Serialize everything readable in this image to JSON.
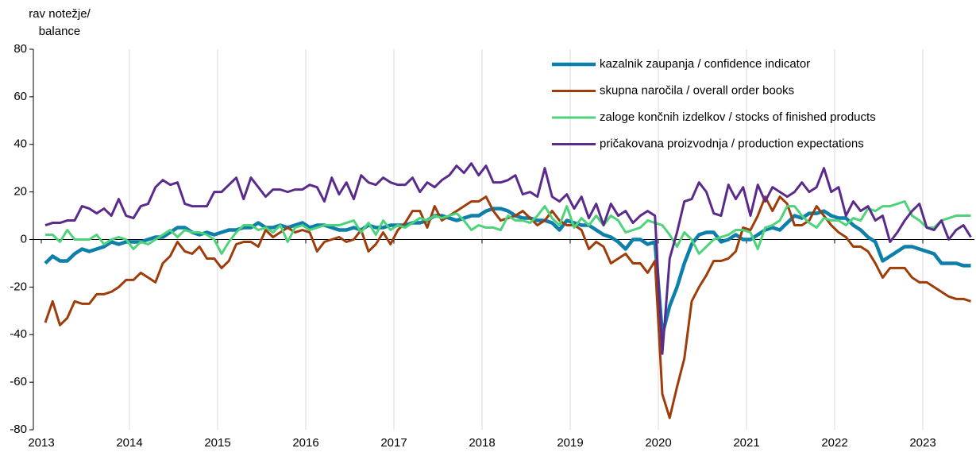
{
  "chart_data": {
    "type": "line",
    "y_label_lines": [
      "rav notežje/",
      "balance"
    ],
    "categories": [
      "2013",
      null,
      null,
      null,
      null,
      null,
      null,
      null,
      null,
      null,
      null,
      null,
      "2014",
      null,
      null,
      null,
      null,
      null,
      null,
      null,
      null,
      null,
      null,
      null,
      "2015",
      null,
      null,
      null,
      null,
      null,
      null,
      null,
      null,
      null,
      null,
      null,
      "2016",
      null,
      null,
      null,
      null,
      null,
      null,
      null,
      null,
      null,
      null,
      null,
      "2017",
      null,
      null,
      null,
      null,
      null,
      null,
      null,
      null,
      null,
      null,
      null,
      "2018",
      null,
      null,
      null,
      null,
      null,
      null,
      null,
      null,
      null,
      null,
      null,
      "2019",
      null,
      null,
      null,
      null,
      null,
      null,
      null,
      null,
      null,
      null,
      null,
      "2020",
      null,
      null,
      null,
      null,
      null,
      null,
      null,
      null,
      null,
      null,
      null,
      "2021",
      null,
      null,
      null,
      null,
      null,
      null,
      null,
      null,
      null,
      null,
      null,
      "2022",
      null,
      null,
      null,
      null,
      null,
      null,
      null,
      null,
      null,
      null,
      null,
      "2023",
      null,
      null,
      null,
      null,
      null,
      null
    ],
    "series": [
      {
        "name": "kazalnik zaupanja / confidence indicator",
        "color": "#0e7fab",
        "width": 4.5,
        "values": [
          -10,
          -7,
          -9,
          -9,
          -6,
          -4,
          -5,
          -4,
          -3,
          -1,
          -2,
          -1,
          -1,
          -1,
          0,
          1,
          1,
          3,
          5,
          5,
          3,
          2,
          3,
          2,
          3,
          4,
          4,
          5,
          5,
          7,
          5,
          5,
          6,
          5,
          6,
          7,
          5,
          6,
          6,
          5,
          4,
          4,
          5,
          4,
          6,
          5,
          5,
          6,
          6,
          6,
          7,
          7,
          8,
          10,
          10,
          9,
          8,
          9,
          10,
          10,
          12,
          13,
          13,
          12,
          10,
          9,
          9,
          8,
          8,
          7,
          4,
          8,
          7,
          6,
          6,
          4,
          2,
          1,
          -1,
          -4,
          0,
          0,
          -2,
          -1,
          -40,
          -28,
          -20,
          -10,
          -2,
          2,
          3,
          3,
          -1,
          0,
          2,
          0,
          0,
          2,
          4,
          5,
          4,
          7,
          10,
          9,
          11,
          11,
          12,
          10,
          9,
          9,
          6,
          4,
          1,
          -1,
          -9,
          -7,
          -5,
          -3,
          -3,
          -4,
          -5,
          -6,
          -10,
          -10,
          -10,
          -11,
          -11
        ]
      },
      {
        "name": "skupna naročila / overall order books",
        "color": "#9e3d0a",
        "width": 3,
        "values": [
          -35,
          -26,
          -36,
          -33,
          -26,
          -27,
          -27,
          -23,
          -23,
          -22,
          -20,
          -17,
          -17,
          -14,
          -16,
          -18,
          -10,
          -7,
          -1,
          -5,
          -6,
          -3,
          -8,
          -8,
          -12,
          -9,
          -2,
          -1,
          -1,
          -3,
          4,
          1,
          3,
          5,
          3,
          4,
          3,
          -5,
          -1,
          0,
          1,
          -1,
          0,
          4,
          -5,
          -2,
          3,
          -2,
          4,
          7,
          12,
          12,
          5,
          14,
          8,
          10,
          12,
          14,
          16,
          16,
          18,
          12,
          8,
          9,
          10,
          12,
          9,
          6,
          8,
          12,
          8,
          6,
          6,
          4,
          -4,
          -1,
          -3,
          -10,
          -8,
          -6,
          -10,
          -10,
          -14,
          -9,
          -65,
          -75,
          -62,
          -50,
          -26,
          -20,
          -15,
          -9,
          -9,
          -8,
          -5,
          5,
          4,
          10,
          18,
          12,
          18,
          15,
          6,
          6,
          8,
          14,
          10,
          6,
          3,
          1,
          -3,
          -3,
          -5,
          -10,
          -16,
          -12,
          -12,
          -12,
          -16,
          -18,
          -18,
          -20,
          -22,
          -24,
          -25,
          -25,
          -26
        ]
      },
      {
        "name": "zaloge končnih izdelkov / stocks of finished products",
        "color": "#4fd37a",
        "width": 3,
        "values": [
          2,
          2,
          -1,
          4,
          0,
          0,
          0,
          2,
          -2,
          0,
          1,
          0,
          -4,
          -1,
          -2,
          0,
          2,
          4,
          1,
          4,
          3,
          3,
          2,
          0,
          -6,
          -1,
          3,
          6,
          6,
          4,
          5,
          3,
          6,
          -1,
          5,
          6,
          4,
          5,
          6,
          6,
          6,
          7,
          8,
          3,
          7,
          2,
          8,
          4,
          6,
          5,
          7,
          9,
          8,
          10,
          9,
          10,
          11,
          8,
          4,
          6,
          5,
          5,
          4,
          10,
          8,
          8,
          7,
          10,
          14,
          9,
          6,
          14,
          5,
          9,
          6,
          10,
          6,
          10,
          8,
          3,
          4,
          5,
          8,
          7,
          6,
          2,
          -3,
          3,
          0,
          -6,
          -3,
          0,
          1,
          2,
          4,
          4,
          3,
          -4,
          5,
          6,
          8,
          14,
          14,
          10,
          7,
          5,
          9,
          8,
          8,
          6,
          9,
          8,
          13,
          12,
          14,
          14,
          15,
          16,
          10,
          8,
          5,
          5,
          8,
          9,
          10,
          10,
          10
        ]
      },
      {
        "name": "pričakovana proizvodnja / production expectations",
        "color": "#5b2b8c",
        "width": 3,
        "values": [
          6,
          7,
          7,
          8,
          8,
          14,
          13,
          11,
          13,
          10,
          17,
          10,
          9,
          14,
          15,
          22,
          25,
          23,
          24,
          15,
          14,
          14,
          14,
          20,
          20,
          23,
          26,
          17,
          26,
          22,
          18,
          21,
          21,
          20,
          21,
          21,
          23,
          22,
          16,
          26,
          19,
          24,
          17,
          27,
          24,
          23,
          26,
          24,
          23,
          23,
          26,
          20,
          24,
          22,
          25,
          27,
          31,
          28,
          32,
          27,
          31,
          24,
          24,
          25,
          27,
          19,
          20,
          18,
          30,
          18,
          16,
          19,
          13,
          18,
          9,
          15,
          6,
          15,
          10,
          12,
          7,
          10,
          12,
          10,
          -48,
          -8,
          3,
          16,
          17,
          24,
          20,
          11,
          10,
          23,
          17,
          22,
          10,
          23,
          16,
          22,
          20,
          18,
          20,
          24,
          20,
          22,
          30,
          20,
          22,
          10,
          16,
          12,
          14,
          8,
          10,
          -1,
          3,
          8,
          12,
          15,
          5,
          4,
          8,
          0,
          4,
          6,
          1
        ]
      }
    ],
    "ylim": [
      -80,
      80
    ],
    "yticks": [
      -80,
      -60,
      -40,
      -20,
      0,
      20,
      40,
      60,
      80
    ],
    "grid": true,
    "legend": "upper right"
  }
}
